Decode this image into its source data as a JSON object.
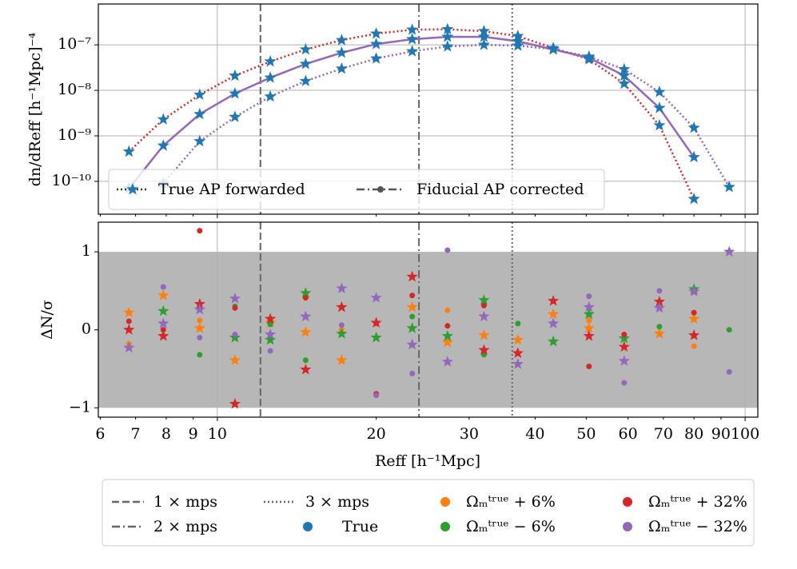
{
  "chart_data": [
    {
      "type": "line",
      "ylabel": "dn/dReff [h⁻¹Mpc]⁻⁴",
      "log_x": true,
      "log_y": true,
      "grid": true,
      "xlim": [
        5.95,
        105.7
      ],
      "ylim": [
        1.9e-11,
        7.9e-07
      ],
      "xticks": [
        6,
        7,
        8,
        9,
        10,
        20,
        30,
        40,
        50,
        60,
        70,
        80,
        90,
        100
      ],
      "yticks": [
        {
          "value": 1e-10,
          "label": "10⁻¹⁰"
        },
        {
          "value": 1e-09,
          "label": "10⁻⁹"
        },
        {
          "value": 1e-08,
          "label": "10⁻⁸"
        },
        {
          "value": 1e-07,
          "label": "10⁻⁷"
        }
      ],
      "grid_x": [
        10,
        100
      ],
      "marker_color": "#1f77b4",
      "legend": [
        "True AP forwarded",
        "Fiducial AP corrected"
      ],
      "vlines": [
        {
          "name": "1 × mps",
          "value": 12.07,
          "style": "dashed"
        },
        {
          "name": "2 × mps",
          "value": 24.1,
          "style": "dashdot"
        },
        {
          "name": "3 × mps",
          "value": 36.2,
          "style": "dotted"
        }
      ],
      "x": [
        6.8,
        7.9,
        9.26,
        10.8,
        12.6,
        14.7,
        17.2,
        20,
        23.4,
        27.3,
        32,
        37.1,
        43.3,
        50.6,
        59,
        68.8,
        80,
        93.3
      ],
      "series": [
        {
          "color": "#d62728",
          "line_style": "dotted",
          "values": [
            4.5e-10,
            2.3e-09,
            8e-09,
            2.1e-08,
            4.3e-08,
            7.9e-08,
            1.27e-07,
            1.76e-07,
            2.15e-07,
            2.2e-07,
            2e-07,
            1.56e-07,
            8.5e-08,
            4.8e-08,
            1.4e-08,
            1.7e-09,
            4.1e-11,
            null
          ]
        },
        {
          "color": "#9467bd",
          "line_style": "solid",
          "values": [
            7e-11,
            6.1e-10,
            3e-09,
            8.5e-09,
            1.9e-08,
            3.8e-08,
            6.7e-08,
            1.04e-07,
            1.33e-07,
            1.5e-07,
            1.5e-07,
            1.2e-07,
            7.9e-08,
            5.2e-08,
            2.1e-08,
            4.1e-09,
            3.4e-10,
            null
          ]
        },
        {
          "color": "#9467bd",
          "line_style": "dotted",
          "values": [
            null,
            9e-11,
            7.6e-10,
            2.6e-09,
            7.3e-09,
            1.6e-08,
            3e-08,
            5e-08,
            7.2e-08,
            9.2e-08,
            1e-07,
            9.6e-08,
            8e-08,
            5.5e-08,
            2.9e-08,
            9.2e-09,
            1.5e-09,
            7.5e-11
          ]
        }
      ]
    },
    {
      "type": "scatter",
      "xlabel": "Reff [h⁻¹Mpc]",
      "ylabel": "ΔN/σ",
      "log_x": true,
      "xlim": [
        5.95,
        105.7
      ],
      "ylim": [
        -1.12,
        1.38
      ],
      "xticks": [
        6,
        7,
        8,
        9,
        10,
        20,
        30,
        40,
        50,
        60,
        70,
        80,
        90,
        100
      ],
      "yticks": [
        {
          "value": -1,
          "label": "−1"
        },
        0,
        1
      ],
      "grid_x": [
        10,
        100
      ],
      "shade_range": [
        -1,
        1
      ],
      "legend_true": {
        "name": "True",
        "color": "#1f77b4"
      },
      "x": [
        6.8,
        7.9,
        9.26,
        10.8,
        12.6,
        14.7,
        17.2,
        20,
        23.4,
        27.3,
        32,
        37.1,
        43.3,
        50.6,
        59,
        68.8,
        80,
        93.3
      ],
      "series": [
        {
          "name": "Ωₘᵗʳᵘᵉ + 6%",
          "color": "#ff7f0e",
          "stars": [
            0.22,
            0.44,
            0.02,
            -0.39,
            0.09,
            -0.03,
            -0.39,
            null,
            0.29,
            -0.16,
            -0.07,
            -0.13,
            0.2,
            0.02,
            null,
            -0.05,
            0.14,
            null
          ],
          "dots": [
            -0.18,
            null,
            0.12,
            null,
            null,
            null,
            0,
            0.08,
            null,
            0.25,
            -0.3,
            null,
            null,
            0.12,
            null,
            null,
            -0.21,
            null
          ]
        },
        {
          "name": "Ωₘᵗʳᵘᵉ − 6%",
          "color": "#2ca02c",
          "stars": [
            null,
            0.24,
            null,
            -0.1,
            -0.13,
            0.47,
            -0.05,
            -0.1,
            0.02,
            -0.08,
            0.38,
            null,
            -0.15,
            0.2,
            -0.11,
            null,
            0.52,
            null
          ],
          "dots": [
            null,
            null,
            -0.32,
            0.3,
            0.07,
            -0.39,
            null,
            null,
            0.17,
            null,
            -0.32,
            0.08,
            null,
            null,
            null,
            0.04,
            null,
            0.0
          ]
        },
        {
          "name": "Ωₘᵗʳᵘᵉ + 32%",
          "color": "#d62728",
          "stars": [
            0,
            -0.08,
            0.33,
            -0.95,
            0.14,
            -0.51,
            0.29,
            0.09,
            0.68,
            null,
            -0.26,
            -0.3,
            0.37,
            -0.08,
            -0.22,
            0.36,
            -0.07,
            null
          ],
          "dots": [
            0.11,
            0,
            1.27,
            0.28,
            null,
            0.41,
            null,
            -0.82,
            0.44,
            0.05,
            0.31,
            null,
            null,
            -0.47,
            -0.06,
            null,
            0.22,
            null
          ]
        },
        {
          "name": "Ωₘᵗʳᵘᵉ − 32%",
          "color": "#9467bd",
          "stars": [
            -0.23,
            0.08,
            0.26,
            0.4,
            -0.06,
            0.17,
            0.53,
            0.41,
            -0.19,
            -0.41,
            0.17,
            -0.44,
            0.08,
            0.29,
            -0.4,
            0.28,
            0.49,
            1.0
          ],
          "dots": [
            null,
            0.55,
            -0.1,
            -0.06,
            -0.27,
            null,
            0.06,
            -0.84,
            -0.56,
            1.02,
            null,
            null,
            null,
            0.43,
            -0.68,
            0.5,
            null,
            -0.54
          ]
        }
      ]
    }
  ]
}
